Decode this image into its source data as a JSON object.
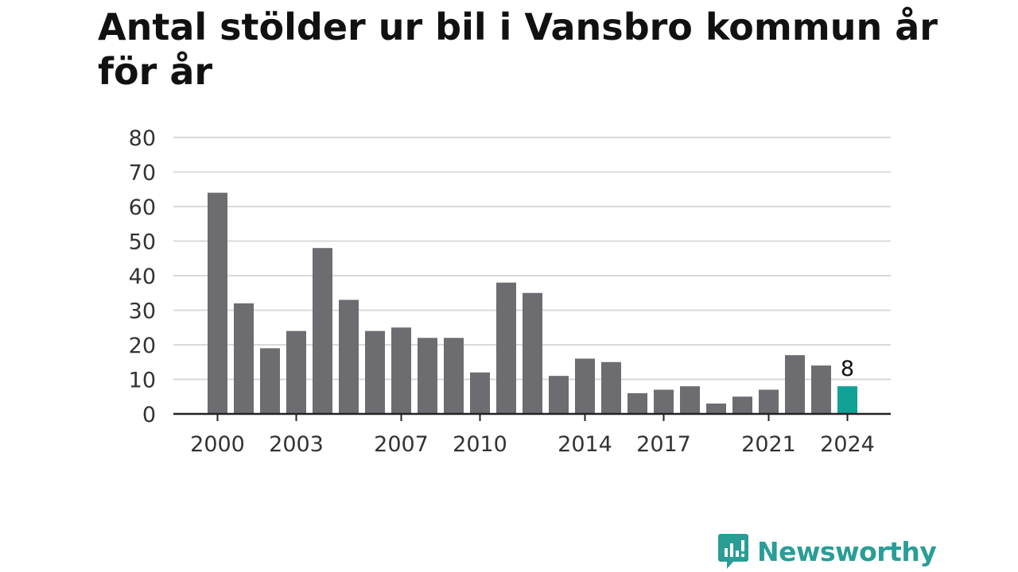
{
  "chart_data": {
    "type": "bar",
    "title": "Antal stölder ur bil i Vansbro kommun år för år",
    "xlabel": "",
    "ylabel": "",
    "ylim": [
      0,
      80
    ],
    "yticks": [
      0,
      10,
      20,
      30,
      40,
      50,
      60,
      70,
      80
    ],
    "x_tick_labels": [
      "2000",
      "2003",
      "2007",
      "2010",
      "2014",
      "2017",
      "2021",
      "2024"
    ],
    "categories": [
      "2000",
      "2001",
      "2002",
      "2003",
      "2004",
      "2005",
      "2006",
      "2007",
      "2008",
      "2009",
      "2010",
      "2011",
      "2012",
      "2013",
      "2014",
      "2015",
      "2016",
      "2017",
      "2018",
      "2019",
      "2020",
      "2021",
      "2022",
      "2023",
      "2024"
    ],
    "values": [
      64,
      32,
      19,
      24,
      48,
      33,
      24,
      25,
      22,
      22,
      12,
      38,
      35,
      11,
      16,
      15,
      6,
      7,
      8,
      3,
      5,
      7,
      17,
      14,
      8
    ],
    "highlight": {
      "category": "2024",
      "label": "8"
    },
    "grid": true,
    "colors": {
      "bar": "#6d6c71",
      "highlight": "#12a196",
      "grid": "#d9d9d9",
      "axis": "#222222"
    }
  },
  "brand": {
    "name": "Newsworthy",
    "icon": "newsworthy-logo-icon"
  }
}
